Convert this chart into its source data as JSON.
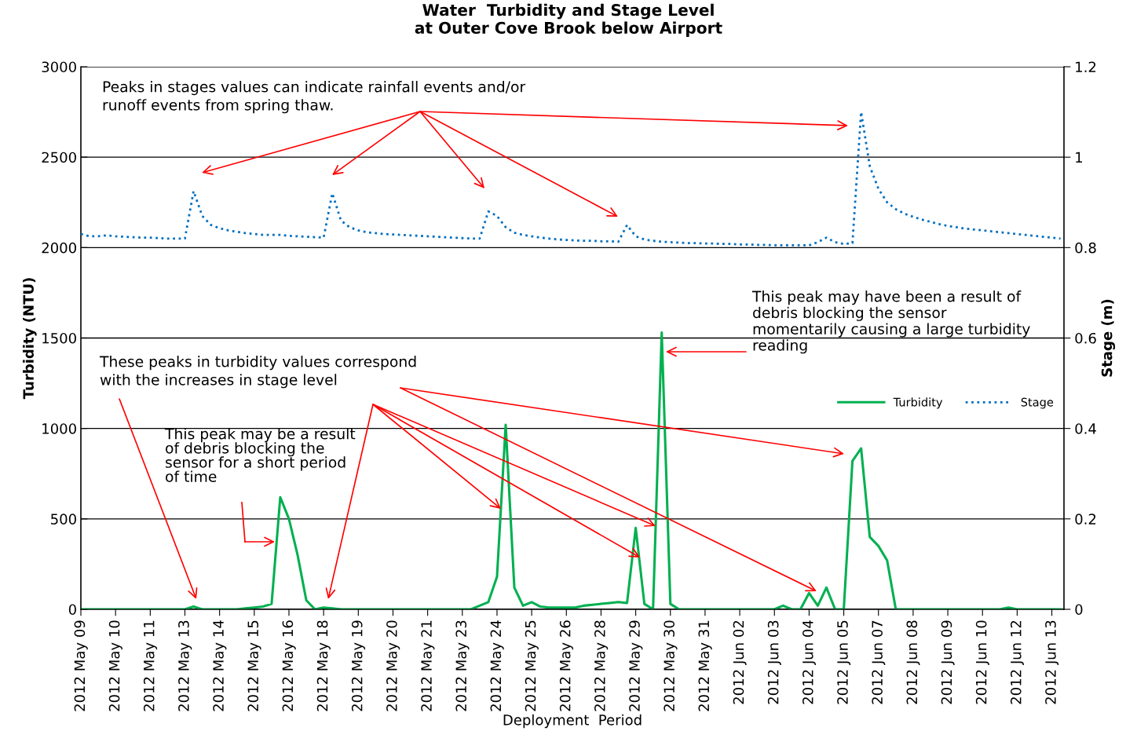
{
  "chart_data": {
    "type": "line",
    "title": "Water  Turbidity and Stage Level\nat Outer Cove Brook below Airport",
    "xlabel": "Deployment  Period",
    "ylabel": "Turbidity (NTU)",
    "y2label": "Stage (m)",
    "categories": [
      "2012 May 09",
      null,
      null,
      null,
      "2012 May 10",
      null,
      null,
      null,
      "2012 May 11",
      null,
      null,
      null,
      "2012 May 13",
      null,
      null,
      null,
      "2012 May 14",
      null,
      null,
      null,
      "2012 May 15",
      null,
      null,
      null,
      "2012 May 16",
      null,
      null,
      null,
      "2012 May 18",
      null,
      null,
      null,
      "2012 May 19",
      null,
      null,
      null,
      "2012 May 20",
      null,
      null,
      null,
      "2012 May 21",
      null,
      null,
      null,
      "2012 May 23",
      null,
      null,
      null,
      "2012 May 24",
      null,
      null,
      null,
      "2012 May 25",
      null,
      null,
      null,
      "2012 May 26",
      null,
      null,
      null,
      "2012 May 28",
      null,
      null,
      null,
      "2012 May 29",
      null,
      null,
      null,
      "2012 May 30",
      null,
      null,
      null,
      "2012 May 31",
      null,
      null,
      null,
      "2012 Jun 02",
      null,
      null,
      null,
      "2012 Jun 03",
      null,
      null,
      null,
      "2012 Jun 04",
      null,
      null,
      null,
      "2012 Jun 05",
      null,
      null,
      null,
      "2012 Jun 07",
      null,
      null,
      null,
      "2012 Jun 08",
      null,
      null,
      null,
      "2012 Jun 09",
      null,
      null,
      null,
      "2012 Jun 10",
      null,
      null,
      null,
      "2012 Jun 12",
      null,
      null,
      null,
      "2012 Jun 13",
      null
    ],
    "series": [
      {
        "name": "Turbidity",
        "color": "#00b050",
        "line_style": "solid",
        "values": [
          0,
          0,
          0,
          0,
          0,
          0,
          0,
          0,
          0,
          0,
          0,
          0,
          0,
          15,
          0,
          0,
          0,
          0,
          0,
          5,
          10,
          15,
          30,
          620,
          500,
          300,
          50,
          0,
          10,
          5,
          0,
          0,
          0,
          0,
          0,
          0,
          0,
          0,
          0,
          0,
          0,
          0,
          0,
          0,
          0,
          0,
          20,
          40,
          180,
          1020,
          120,
          20,
          40,
          15,
          10,
          10,
          10,
          10,
          20,
          25,
          30,
          35,
          40,
          35,
          450,
          30,
          0,
          1530,
          30,
          0,
          0,
          0,
          0,
          0,
          0,
          0,
          0,
          0,
          0,
          0,
          0,
          20,
          0,
          0,
          90,
          20,
          120,
          0,
          0,
          820,
          890,
          400,
          350,
          270,
          0,
          0,
          0,
          0,
          0,
          0,
          0,
          0,
          0,
          0,
          0,
          0,
          0,
          10,
          0,
          0,
          0,
          0,
          0,
          0
        ]
      },
      {
        "name": "Stage",
        "color": "#0070c0",
        "axis": "y2",
        "line_style": "dotted",
        "values": [
          0.83,
          0.825,
          0.825,
          0.827,
          0.825,
          0.824,
          0.823,
          0.822,
          0.822,
          0.821,
          0.82,
          0.82,
          0.82,
          0.925,
          0.87,
          0.85,
          0.843,
          0.838,
          0.835,
          0.832,
          0.83,
          0.828,
          0.828,
          0.828,
          0.826,
          0.825,
          0.824,
          0.823,
          0.822,
          0.92,
          0.86,
          0.845,
          0.838,
          0.834,
          0.832,
          0.83,
          0.829,
          0.828,
          0.827,
          0.826,
          0.825,
          0.824,
          0.823,
          0.822,
          0.821,
          0.82,
          0.82,
          0.88,
          0.87,
          0.845,
          0.833,
          0.828,
          0.825,
          0.822,
          0.82,
          0.818,
          0.817,
          0.816,
          0.815,
          0.815,
          0.814,
          0.814,
          0.813,
          0.85,
          0.825,
          0.818,
          0.815,
          0.813,
          0.812,
          0.811,
          0.81,
          0.81,
          0.809,
          0.809,
          0.808,
          0.808,
          0.807,
          0.807,
          0.806,
          0.806,
          0.805,
          0.805,
          0.805,
          0.805,
          0.805,
          0.812,
          0.822,
          0.812,
          0.808,
          0.81,
          1.1,
          0.98,
          0.93,
          0.9,
          0.885,
          0.875,
          0.868,
          0.862,
          0.857,
          0.852,
          0.848,
          0.845,
          0.842,
          0.84,
          0.838,
          0.836,
          0.834,
          0.832,
          0.83,
          0.828,
          0.826,
          0.824,
          0.822,
          0.82
        ]
      }
    ],
    "ylim": [
      0,
      3000
    ],
    "yticks": [
      0,
      500,
      1000,
      1500,
      2000,
      2500,
      3000
    ],
    "y2lim": [
      0,
      1.2
    ],
    "y2ticks": [
      0,
      0.2,
      0.4,
      0.6,
      0.8,
      1,
      1.2
    ],
    "grid": "y",
    "legend": "right",
    "annotations": [
      "Peaks in stages values can indicate rainfall events and/or\nrunoff events from spring thaw.",
      "These peaks in turbidity values correspond\nwith the increases in stage level",
      "This peak may be a result\nof debris blocking the\nsensor for a short period\nof time",
      "This peak may have been a result of\ndebris blocking the sensor\nmomentarily causing a large turbidity\nreading"
    ]
  }
}
